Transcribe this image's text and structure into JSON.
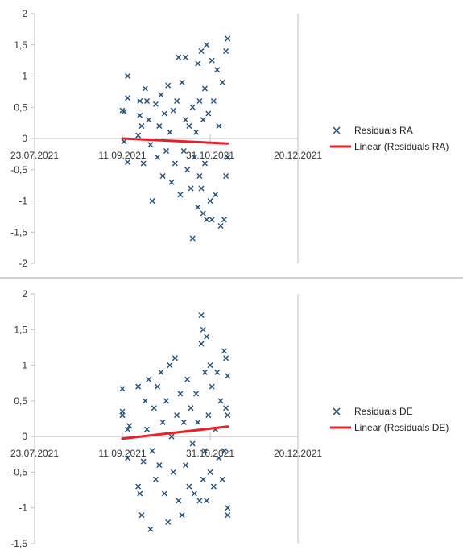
{
  "colors": {
    "marker": "#1f4e79",
    "trend": "#e8202a",
    "axis": "#bfbfbf"
  },
  "chart_data": [
    {
      "type": "scatter",
      "title": "",
      "xlabel": "",
      "ylabel": "",
      "x_is_date": true,
      "x_ticks": [
        "23.07.2021",
        "11.09.2021",
        "31.10.2021",
        "20.12.2021"
      ],
      "xlim": [
        "23.07.2021",
        "20.12.2021"
      ],
      "ylim": [
        -2,
        2
      ],
      "y_ticks": [
        "2",
        "1,5",
        "1",
        "0,5",
        "0",
        "-0,5",
        "-1",
        "-1,5",
        "-2"
      ],
      "y_tick_values": [
        2,
        1.5,
        1,
        0.5,
        0,
        -0.5,
        -1,
        -1.5,
        -2
      ],
      "grid": false,
      "legend_position": "right",
      "legend": [
        "Residuals RA",
        "Linear (Residuals RA)"
      ],
      "series": [
        {
          "name": "Residuals RA",
          "marker": "x",
          "points": [
            {
              "x": "11.09.2021",
              "y": 0.45
            },
            {
              "x": "12.09.2021",
              "y": 0.43
            },
            {
              "x": "12.09.2021",
              "y": -0.05
            },
            {
              "x": "14.09.2021",
              "y": 1.0
            },
            {
              "x": "14.09.2021",
              "y": 0.65
            },
            {
              "x": "14.09.2021",
              "y": -0.38
            },
            {
              "x": "20.09.2021",
              "y": 0.05
            },
            {
              "x": "21.09.2021",
              "y": 0.6
            },
            {
              "x": "21.09.2021",
              "y": 0.37
            },
            {
              "x": "22.09.2021",
              "y": 0.2
            },
            {
              "x": "23.09.2021",
              "y": -0.4
            },
            {
              "x": "24.09.2021",
              "y": 0.8
            },
            {
              "x": "25.09.2021",
              "y": 0.6
            },
            {
              "x": "26.09.2021",
              "y": 0.3
            },
            {
              "x": "27.09.2021",
              "y": -0.1
            },
            {
              "x": "28.09.2021",
              "y": -1.0
            },
            {
              "x": "30.09.2021",
              "y": 0.55
            },
            {
              "x": "01.10.2021",
              "y": -0.3
            },
            {
              "x": "02.10.2021",
              "y": 0.2
            },
            {
              "x": "03.10.2021",
              "y": 0.7
            },
            {
              "x": "04.10.2021",
              "y": -0.6
            },
            {
              "x": "05.10.2021",
              "y": 0.4
            },
            {
              "x": "06.10.2021",
              "y": -0.2
            },
            {
              "x": "07.10.2021",
              "y": 0.85
            },
            {
              "x": "08.10.2021",
              "y": 0.1
            },
            {
              "x": "09.10.2021",
              "y": -0.7
            },
            {
              "x": "10.10.2021",
              "y": 0.45
            },
            {
              "x": "11.10.2021",
              "y": -0.4
            },
            {
              "x": "12.10.2021",
              "y": 0.6
            },
            {
              "x": "13.10.2021",
              "y": 1.3
            },
            {
              "x": "14.10.2021",
              "y": -0.9
            },
            {
              "x": "15.10.2021",
              "y": 0.9
            },
            {
              "x": "16.10.2021",
              "y": -0.2
            },
            {
              "x": "17.10.2021",
              "y": 1.3
            },
            {
              "x": "17.10.2021",
              "y": 0.3
            },
            {
              "x": "18.10.2021",
              "y": -0.5
            },
            {
              "x": "19.10.2021",
              "y": 0.2
            },
            {
              "x": "20.10.2021",
              "y": -0.8
            },
            {
              "x": "21.10.2021",
              "y": 0.5
            },
            {
              "x": "21.10.2021",
              "y": -1.6
            },
            {
              "x": "22.10.2021",
              "y": -0.3
            },
            {
              "x": "23.10.2021",
              "y": 0.1
            },
            {
              "x": "24.10.2021",
              "y": 1.2
            },
            {
              "x": "24.10.2021",
              "y": -1.1
            },
            {
              "x": "25.10.2021",
              "y": 0.6
            },
            {
              "x": "25.10.2021",
              "y": -0.6
            },
            {
              "x": "26.10.2021",
              "y": 1.4
            },
            {
              "x": "26.10.2021",
              "y": -0.8
            },
            {
              "x": "27.10.2021",
              "y": 0.3
            },
            {
              "x": "27.10.2021",
              "y": -1.2
            },
            {
              "x": "28.10.2021",
              "y": -0.4
            },
            {
              "x": "28.10.2021",
              "y": 0.8
            },
            {
              "x": "29.10.2021",
              "y": 1.5
            },
            {
              "x": "29.10.2021",
              "y": -1.3
            },
            {
              "x": "30.10.2021",
              "y": 0.4
            },
            {
              "x": "31.10.2021",
              "y": -1.0
            },
            {
              "x": "01.11.2021",
              "y": 1.25
            },
            {
              "x": "01.11.2021",
              "y": -1.3
            },
            {
              "x": "02.11.2021",
              "y": 0.6
            },
            {
              "x": "03.11.2021",
              "y": -0.9
            },
            {
              "x": "04.11.2021",
              "y": 1.1
            },
            {
              "x": "05.11.2021",
              "y": 0.2
            },
            {
              "x": "06.11.2021",
              "y": -1.4
            },
            {
              "x": "07.11.2021",
              "y": 0.9
            },
            {
              "x": "08.11.2021",
              "y": -1.3
            },
            {
              "x": "09.11.2021",
              "y": 1.4
            },
            {
              "x": "09.11.2021",
              "y": -0.6
            },
            {
              "x": "10.11.2021",
              "y": 1.6
            },
            {
              "x": "10.11.2021",
              "y": -0.3
            }
          ]
        },
        {
          "name": "Linear (Residuals RA)",
          "type": "line",
          "points": [
            {
              "x": "11.09.2021",
              "y": 0.0
            },
            {
              "x": "10.11.2021",
              "y": -0.08
            }
          ]
        }
      ]
    },
    {
      "type": "scatter",
      "title": "",
      "xlabel": "",
      "ylabel": "",
      "x_is_date": true,
      "x_ticks": [
        "23.07.2021",
        "11.09.2021",
        "31.10.2021",
        "20.12.2021"
      ],
      "xlim": [
        "23.07.2021",
        "20.12.2021"
      ],
      "ylim": [
        -1.5,
        2
      ],
      "y_ticks": [
        "2",
        "1,5",
        "1",
        "0,5",
        "0",
        "-0,5",
        "-1",
        "-1,5"
      ],
      "y_tick_values": [
        2,
        1.5,
        1,
        0.5,
        0,
        -0.5,
        -1,
        -1.5
      ],
      "grid": false,
      "legend_position": "right",
      "legend": [
        "Residuals DE",
        "Linear (Residuals DE)"
      ],
      "series": [
        {
          "name": "Residuals DE",
          "marker": "x",
          "points": [
            {
              "x": "11.09.2021",
              "y": 0.67
            },
            {
              "x": "11.09.2021",
              "y": 0.35
            },
            {
              "x": "11.09.2021",
              "y": 0.3
            },
            {
              "x": "14.09.2021",
              "y": 0.1
            },
            {
              "x": "14.09.2021",
              "y": -0.3
            },
            {
              "x": "15.09.2021",
              "y": 0.15
            },
            {
              "x": "20.09.2021",
              "y": 0.7
            },
            {
              "x": "20.09.2021",
              "y": -0.7
            },
            {
              "x": "21.09.2021",
              "y": -0.8
            },
            {
              "x": "22.09.2021",
              "y": -1.1
            },
            {
              "x": "23.09.2021",
              "y": -0.35
            },
            {
              "x": "24.09.2021",
              "y": 0.5
            },
            {
              "x": "25.09.2021",
              "y": 0.1
            },
            {
              "x": "26.09.2021",
              "y": 0.8
            },
            {
              "x": "27.09.2021",
              "y": -1.3
            },
            {
              "x": "28.09.2021",
              "y": -0.2
            },
            {
              "x": "29.09.2021",
              "y": 0.4
            },
            {
              "x": "30.09.2021",
              "y": -0.6
            },
            {
              "x": "01.10.2021",
              "y": 0.7
            },
            {
              "x": "02.10.2021",
              "y": -0.4
            },
            {
              "x": "03.10.2021",
              "y": 0.9
            },
            {
              "x": "04.10.2021",
              "y": 0.2
            },
            {
              "x": "05.10.2021",
              "y": -0.8
            },
            {
              "x": "06.10.2021",
              "y": 0.5
            },
            {
              "x": "07.10.2021",
              "y": -1.2
            },
            {
              "x": "08.10.2021",
              "y": 1.0
            },
            {
              "x": "09.10.2021",
              "y": 0.0
            },
            {
              "x": "10.10.2021",
              "y": -0.5
            },
            {
              "x": "11.10.2021",
              "y": 1.1
            },
            {
              "x": "12.10.2021",
              "y": 0.3
            },
            {
              "x": "13.10.2021",
              "y": -0.9
            },
            {
              "x": "14.10.2021",
              "y": 0.6
            },
            {
              "x": "15.10.2021",
              "y": -1.1
            },
            {
              "x": "16.10.2021",
              "y": 0.2
            },
            {
              "x": "17.10.2021",
              "y": -0.4
            },
            {
              "x": "18.10.2021",
              "y": 0.8
            },
            {
              "x": "19.10.2021",
              "y": -0.7
            },
            {
              "x": "20.10.2021",
              "y": 0.4
            },
            {
              "x": "21.10.2021",
              "y": -0.1
            },
            {
              "x": "22.10.2021",
              "y": -0.8
            },
            {
              "x": "23.10.2021",
              "y": 0.6
            },
            {
              "x": "24.10.2021",
              "y": 0.2
            },
            {
              "x": "25.10.2021",
              "y": -0.9
            },
            {
              "x": "26.10.2021",
              "y": 1.3
            },
            {
              "x": "26.10.2021",
              "y": 1.7
            },
            {
              "x": "27.10.2021",
              "y": 1.5
            },
            {
              "x": "27.10.2021",
              "y": -0.6
            },
            {
              "x": "28.10.2021",
              "y": 0.9
            },
            {
              "x": "28.10.2021",
              "y": -0.2
            },
            {
              "x": "29.10.2021",
              "y": 1.4
            },
            {
              "x": "29.10.2021",
              "y": -0.9
            },
            {
              "x": "30.10.2021",
              "y": 0.3
            },
            {
              "x": "31.10.2021",
              "y": 1.0
            },
            {
              "x": "31.10.2021",
              "y": -0.5
            },
            {
              "x": "01.11.2021",
              "y": 0.7
            },
            {
              "x": "02.11.2021",
              "y": -0.7
            },
            {
              "x": "03.11.2021",
              "y": 0.1
            },
            {
              "x": "04.11.2021",
              "y": 0.9
            },
            {
              "x": "05.11.2021",
              "y": -0.3
            },
            {
              "x": "06.11.2021",
              "y": 0.5
            },
            {
              "x": "07.11.2021",
              "y": -0.6
            },
            {
              "x": "08.11.2021",
              "y": 1.2
            },
            {
              "x": "08.11.2021",
              "y": -0.2
            },
            {
              "x": "09.11.2021",
              "y": 1.1
            },
            {
              "x": "09.11.2021",
              "y": 0.4
            },
            {
              "x": "10.11.2021",
              "y": -1.0
            },
            {
              "x": "10.11.2021",
              "y": -1.1
            },
            {
              "x": "10.11.2021",
              "y": 0.85
            },
            {
              "x": "10.11.2021",
              "y": 0.3
            }
          ]
        },
        {
          "name": "Linear (Residuals DE)",
          "type": "line",
          "points": [
            {
              "x": "11.09.2021",
              "y": -0.03
            },
            {
              "x": "10.11.2021",
              "y": 0.14
            }
          ]
        }
      ]
    }
  ]
}
